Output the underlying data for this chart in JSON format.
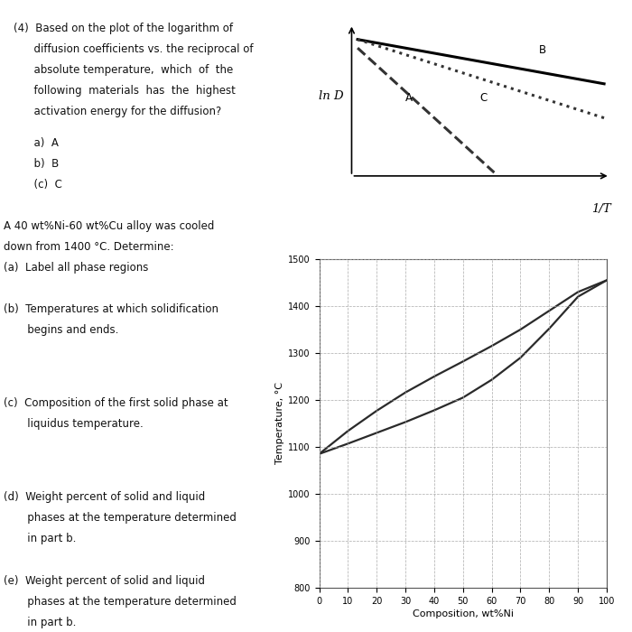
{
  "background_color": "#ffffff",
  "text_color": "#111111",
  "left_panel": {
    "q4_line1": "(4)  Based on the plot of the logarithm of",
    "q4_line2": "      diffusion coefficients vs. the reciprocal of",
    "q4_line3": "      absolute temperature,  which  of  the",
    "q4_line4": "      following  materials  has  the  highest",
    "q4_line5": "      activation energy for the diffusion?",
    "q4_a": "      a)  A",
    "q4_b": "      b)  B",
    "q4_c": "      (c)  C",
    "alloy_1": "A 40 wt%Ni-60 wt%Cu alloy was cooled",
    "alloy_2": "down from 1400 °C. Determine:",
    "alloy_3": "(a)  Label all phase regions",
    "b_1": "(b)  Temperatures at which solidification",
    "b_2": "       begins and ends.",
    "c_1": "(c)  Composition of the first solid phase at",
    "c_2": "       liquidus temperature.",
    "d_1": "(d)  Weight percent of solid and liquid",
    "d_2": "       phases at the temperature determined",
    "d_3": "       in part b.",
    "e_1": "(e)  Weight percent of solid and liquid",
    "e_2": "       phases at the temperature determined",
    "e_3": "       in part b."
  },
  "lnd_diagram": {
    "ylabel": "ln D",
    "xlabel": "1/T",
    "line_A_label": "A",
    "line_B_label": "B",
    "line_C_label": "C"
  },
  "phase_diagram": {
    "xlabel": "Composition, wt%Ni",
    "ylabel": "Temperature, °C",
    "xlim": [
      0,
      100
    ],
    "ylim": [
      800,
      1500
    ],
    "yticks": [
      800,
      900,
      1000,
      1100,
      1200,
      1300,
      1400,
      1500
    ],
    "xticks": [
      0,
      10,
      20,
      30,
      40,
      50,
      60,
      70,
      80,
      90,
      100
    ],
    "liquidus_x": [
      0,
      10,
      20,
      30,
      40,
      50,
      60,
      70,
      80,
      90,
      100
    ],
    "liquidus_y": [
      1085,
      1134,
      1177,
      1216,
      1250,
      1282,
      1315,
      1350,
      1390,
      1430,
      1455
    ],
    "solidus_x": [
      0,
      10,
      20,
      30,
      40,
      50,
      60,
      70,
      80,
      90,
      100
    ],
    "solidus_y": [
      1085,
      1107,
      1130,
      1153,
      1178,
      1205,
      1243,
      1290,
      1352,
      1420,
      1455
    ],
    "line_color": "#2a2a2a",
    "grid_color": "#aaaaaa",
    "tick_fontsize": 7.0,
    "label_fontsize": 8.0
  }
}
